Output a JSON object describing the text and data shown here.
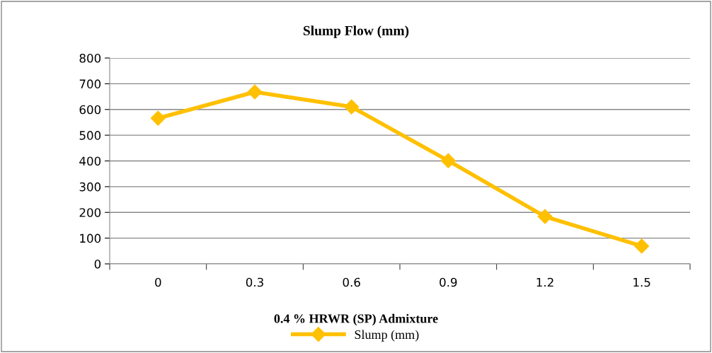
{
  "chart_data": {
    "type": "line",
    "title": "Slump Flow (mm)",
    "xlabel": "0.4 % HRWR (SP) Admixture",
    "categories": [
      "0",
      "0.3",
      "0.6",
      "0.9",
      "1.2",
      "1.5"
    ],
    "series": [
      {
        "name": "Slump (mm)",
        "color": "#ffc000",
        "values": [
          566,
          668,
          610,
          401,
          184,
          69
        ]
      }
    ],
    "ylim": [
      0,
      800
    ],
    "yticks": [
      0,
      100,
      200,
      300,
      400,
      500,
      600,
      700,
      800
    ],
    "grid": "y",
    "legend": "bottom",
    "marker": "diamond",
    "line_style": "solid"
  }
}
